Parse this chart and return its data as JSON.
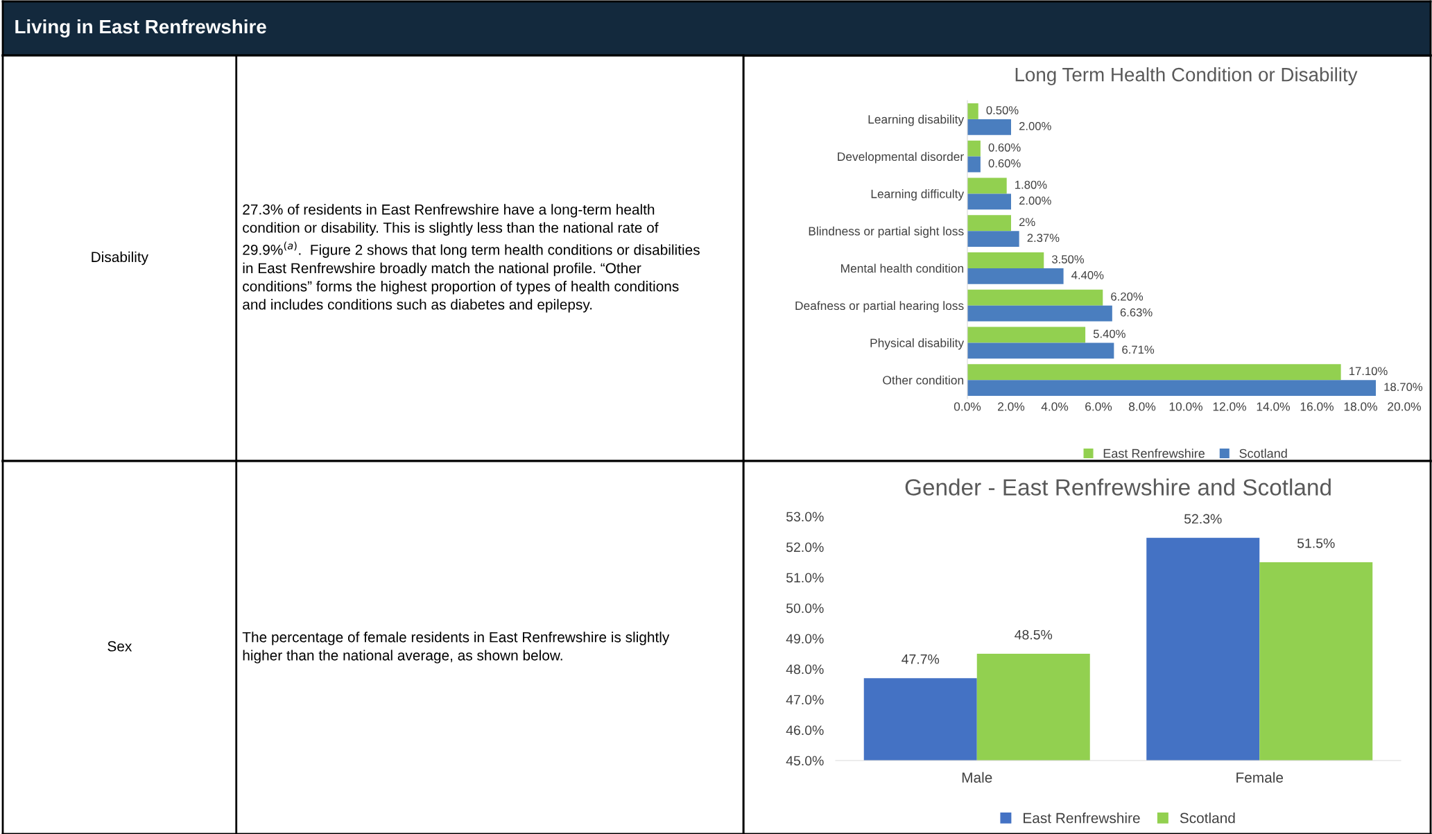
{
  "chart_data": [
    {
      "type": "other",
      "title": "Living in East Renfrewshire"
    },
    {
      "type": "other",
      "annotations": [
        "Disability",
        "27.3% of residents in East Renfrewshire have a long-term health\ncondition or disability. This is slightly less than the national rate of\n29.9%$^{(a)}$.  Figure 2 shows that long term health conditions or disabilities\nin East Renfrewshire broadly match the national profile. “Other\nconditions” forms the highest proportion of types of health conditions\nand includes conditions such as diabetes and epilepsy."
      ]
    },
    {
      "type": "bar",
      "orientation": "horizontal",
      "title": "Long Term Health Condition or Disability",
      "categories": [
        "Learning disability",
        "Developmental disorder",
        "Learning difficulty",
        "Blindness or partial sight loss",
        "Mental health condition",
        "Deafness or partial hearing loss",
        "Physical disability",
        "Other condition"
      ],
      "series": [
        {
          "name": "East Renfrewshire",
          "color": "#92d050",
          "values": [
            0.5,
            0.6,
            1.8,
            2,
            3.5,
            6.2,
            5.4,
            17.1
          ],
          "value_labels": [
            "0.50%",
            "0.60%",
            "1.80%",
            "2%",
            "3.50%",
            "6.20%",
            "5.40%",
            "17.10%"
          ]
        },
        {
          "name": "Scotland",
          "color": "#4a7ebf",
          "values": [
            2.0,
            0.6,
            2.0,
            2.37,
            4.4,
            6.63,
            6.71,
            18.7
          ],
          "value_labels": [
            "2.00%",
            "0.60%",
            "2.00%",
            "2.37%",
            "4.40%",
            "6.63%",
            "6.71%",
            "18.70%"
          ]
        }
      ],
      "xlim": [
        0,
        20
      ],
      "xticks": [
        {
          "value": 0,
          "label": "0.0%"
        },
        {
          "value": 2,
          "label": "2.0%"
        },
        {
          "value": 4,
          "label": "4.0%"
        },
        {
          "value": 6,
          "label": "6.0%"
        },
        {
          "value": 8,
          "label": "8.0%"
        },
        {
          "value": 10,
          "label": "10.0%"
        },
        {
          "value": 12,
          "label": "12.0%"
        },
        {
          "value": 14,
          "label": "14.0%"
        },
        {
          "value": 16,
          "label": "16.0%"
        },
        {
          "value": 18,
          "label": "18.0%"
        },
        {
          "value": 20,
          "label": "20.0%"
        }
      ],
      "grid": false,
      "legend": "bottom"
    },
    {
      "type": "other",
      "annotations": [
        "Sex",
        "The percentage of female residents in East Renfrewshire is slightly\nhigher than the national average, as shown below."
      ]
    },
    {
      "type": "bar",
      "title": "Gender - East Renfrewshire and Scotland",
      "categories": [
        "Male",
        "Female"
      ],
      "series": [
        {
          "name": "East Renfrewshire",
          "color": "#4472c4",
          "values": [
            47.7,
            52.3
          ],
          "value_labels": [
            "47.7%",
            "52.3%"
          ]
        },
        {
          "name": "Scotland",
          "color": "#92d050",
          "values": [
            48.5,
            51.5
          ],
          "value_labels": [
            "48.5%",
            "51.5%"
          ]
        }
      ],
      "ylim": [
        45,
        53
      ],
      "yticks": [
        {
          "value": 45,
          "label": "45.0%"
        },
        {
          "value": 46,
          "label": "46.0%"
        },
        {
          "value": 47,
          "label": "47.0%"
        },
        {
          "value": 48,
          "label": "48.0%"
        },
        {
          "value": 49,
          "label": "49.0%"
        },
        {
          "value": 50,
          "label": "50.0%"
        },
        {
          "value": 51,
          "label": "51.0%"
        },
        {
          "value": 52,
          "label": "52.0%"
        },
        {
          "value": 53,
          "label": "53.0%"
        }
      ],
      "grid": false,
      "legend": "bottom"
    }
  ]
}
